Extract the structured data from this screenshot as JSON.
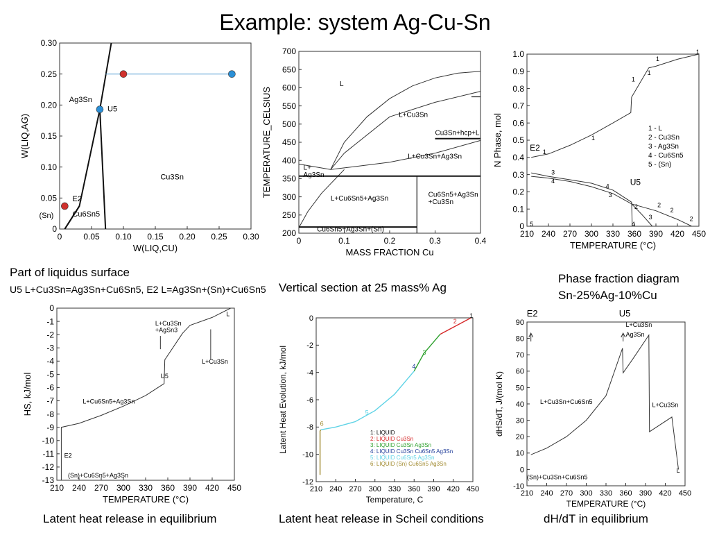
{
  "title": "Example: system Ag-Cu-Sn",
  "captions": {
    "p1_a": "Part of liquidus surface",
    "p1_b": "U5 L+Cu3Sn=Ag3Sn+Cu6Sn5, E2 L=Ag3Sn+(Sn)+Cu6Sn5",
    "p2": "Vertical section at 25 mass% Ag",
    "p3_a": "Phase fraction diagram",
    "p3_b": "Sn-25%Ag-10%Cu",
    "p4": "Latent heat release in equilibrium",
    "p5": "Latent heat release in Scheil conditions",
    "p6": "dH/dT in equilibrium"
  },
  "colors": {
    "red": "#d0312d",
    "blue": "#2b8fd6",
    "arrow": "#6aa9d8",
    "liq": "#d62728",
    "green": "#2ca02c",
    "navy": "#1f3c99",
    "cyan": "#5fd3e6",
    "olive": "#a0892d"
  },
  "chart_data": [
    {
      "id": "liquidus",
      "type": "line",
      "xlabel": "W(LIQ,CU)",
      "ylabel": "W(LIQ,AG)",
      "xlim": [
        0,
        0.3
      ],
      "ylim": [
        0,
        0.3
      ],
      "xticks": [
        "0",
        "0.05",
        "0.10",
        "0.15",
        "0.20",
        "0.25",
        "0.30"
      ],
      "yticks": [
        "0",
        "0.05",
        "0.10",
        "0.15",
        "0.20",
        "0.25",
        "0.30"
      ],
      "lines": [
        {
          "x": [
            0.008,
            0.031,
            0.063,
            0.081
          ],
          "y": [
            0,
            0.037,
            0.193,
            0.3
          ]
        },
        {
          "x": [
            0.063,
            0.072
          ],
          "y": [
            0.193,
            0
          ]
        },
        {
          "x": [
            0.031,
            0.008
          ],
          "y": [
            0.037,
            0.0
          ]
        }
      ],
      "path": {
        "x": [
          0.27,
          0.1,
          0.072
        ],
        "y": [
          0.25,
          0.25,
          0.25
        ]
      },
      "points": [
        {
          "x": 0.1,
          "y": 0.25,
          "c": "red"
        },
        {
          "x": 0.27,
          "y": 0.25,
          "c": "blue"
        },
        {
          "x": 0.063,
          "y": 0.193,
          "c": "blue"
        },
        {
          "x": 0.008,
          "y": 0.037,
          "c": "red"
        }
      ],
      "labels": [
        {
          "x": 0.015,
          "y": 0.205,
          "t": "Ag3Sn"
        },
        {
          "x": 0.075,
          "y": 0.19,
          "t": "U5"
        },
        {
          "x": 0.158,
          "y": 0.08,
          "t": "Cu3Sn"
        },
        {
          "x": 0.02,
          "y": 0.045,
          "t": "E2"
        },
        {
          "x": 0.02,
          "y": 0.02,
          "t": "Cu6Sn5"
        },
        {
          "x": -0.032,
          "y": 0.018,
          "t": "(Sn)"
        }
      ]
    },
    {
      "id": "vsection",
      "type": "line",
      "xlabel": "MASS FRACTION Cu",
      "ylabel": "TEMPERATURE_CELSIUS",
      "xlim": [
        0,
        0.4
      ],
      "ylim": [
        200,
        700
      ],
      "xticks": [
        "0",
        "0.1",
        "0.2",
        "0.3",
        "0.4"
      ],
      "yticks": [
        "200",
        "250",
        "300",
        "350",
        "400",
        "450",
        "500",
        "550",
        "600",
        "650",
        "700"
      ],
      "liquidus": {
        "x": [
          0.07,
          0.1,
          0.15,
          0.2,
          0.25,
          0.3,
          0.35,
          0.4
        ],
        "y": [
          375,
          450,
          520,
          570,
          605,
          627,
          640,
          645
        ]
      },
      "labels": [
        {
          "x": 0.09,
          "y": 605,
          "t": "L"
        },
        {
          "x": 0.22,
          "y": 520,
          "t": "L+Cu3Sn"
        },
        {
          "x": 0.3,
          "y": 470,
          "t": "Cu3Sn+hcp+L"
        },
        {
          "x": 0.24,
          "y": 405,
          "t": "L+Cu3Sn+Ag3Sn"
        },
        {
          "x": 0.01,
          "y": 375,
          "t": "L+"
        },
        {
          "x": 0.01,
          "y": 355,
          "t": "Ag3Sn"
        },
        {
          "x": 0.07,
          "y": 290,
          "t": "L+Cu6Sn5+Ag3Sn"
        },
        {
          "x": 0.285,
          "y": 300,
          "t": "Cu6Sn5+Ag3Sn"
        },
        {
          "x": 0.285,
          "y": 280,
          "t": "+Cu3Sn"
        },
        {
          "x": 0.04,
          "y": 205,
          "t": "Cu6Sn5+Ag3Sn+(Sn)"
        }
      ]
    },
    {
      "id": "phasefraction",
      "type": "line",
      "xlabel": "TEMPERATURE (°C)",
      "ylabel": "N Phase, mol",
      "xlim": [
        210,
        450
      ],
      "ylim": [
        0,
        1.0
      ],
      "xticks": [
        "210",
        "240",
        "270",
        "300",
        "330",
        "360",
        "390",
        "420",
        "450"
      ],
      "yticks": [
        "0",
        "0.1",
        "0.2",
        "0.3",
        "0.4",
        "0.5",
        "0.6",
        "0.7",
        "0.8",
        "0.9",
        "1.0"
      ],
      "legend": [
        "1 - L",
        "2 - Cu3Sn",
        "3 - Ag3Sn",
        "4 - Cu6Sn5",
        "5 - (Sn)"
      ],
      "series": [
        {
          "x": [
            216,
            240,
            270,
            300,
            330,
            355,
            356,
            380,
            390,
            420,
            450
          ],
          "y": [
            0.4,
            0.42,
            0.47,
            0.53,
            0.6,
            0.66,
            0.75,
            0.92,
            0.93,
            0.97,
            1.0
          ]
        },
        {
          "x": [
            356,
            390,
            420,
            440
          ],
          "y": [
            0.13,
            0.09,
            0.04,
            0
          ]
        },
        {
          "x": [
            216,
            240,
            270,
            300,
            330,
            356,
            370,
            385
          ],
          "y": [
            0.29,
            0.28,
            0.26,
            0.23,
            0.19,
            0.13,
            0.07,
            0
          ]
        },
        {
          "x": [
            216,
            240,
            270,
            300,
            330,
            356,
            357
          ],
          "y": [
            0.31,
            0.29,
            0.27,
            0.25,
            0.21,
            0.14,
            0
          ]
        }
      ],
      "labels": [
        {
          "x": 212,
          "y": 0.44,
          "t": "E2"
        },
        {
          "x": 352,
          "y": 0.24,
          "t": "U5"
        }
      ]
    },
    {
      "id": "latentheat",
      "type": "line",
      "xlabel": "TEMPERATURE (°C)",
      "ylabel": "HS, kJ/mol",
      "xlim": [
        210,
        450
      ],
      "ylim": [
        -13,
        0
      ],
      "xticks": [
        "210",
        "240",
        "270",
        "300",
        "330",
        "360",
        "390",
        "420",
        "450"
      ],
      "yticks": [
        "0",
        "-1",
        "-2",
        "-3",
        "-4",
        "-5",
        "-6",
        "-7",
        "-8",
        "-9",
        "-10",
        "-11",
        "-12",
        "-13"
      ],
      "series": [
        {
          "x": [
            216,
            216,
            240,
            270,
            300,
            330,
            355,
            356,
            380,
            390,
            420,
            445
          ],
          "y": [
            -13,
            -9,
            -8.7,
            -8.1,
            -7.4,
            -6.6,
            -5.7,
            -3.9,
            -1.9,
            -1.3,
            -0.7,
            0
          ]
        }
      ],
      "labels": [
        {
          "x": 343,
          "y": -1.3,
          "t": "L+Cu3Sn"
        },
        {
          "x": 343,
          "y": -1.8,
          "t": "+AgSn3"
        },
        {
          "x": 406,
          "y": -4.2,
          "t": "L+Cu3Sn"
        },
        {
          "x": 439,
          "y": -0.6,
          "t": "L"
        },
        {
          "x": 245,
          "y": -7.2,
          "t": "L+Cu6Sn5+Ag3Sn"
        },
        {
          "x": 350,
          "y": -5.3,
          "t": "U5"
        },
        {
          "x": 220,
          "y": -11.3,
          "t": "E2"
        },
        {
          "x": 225,
          "y": -12.8,
          "t": "(Sn)+Cu6Sn5+Ag3Sn"
        }
      ]
    },
    {
      "id": "scheil",
      "type": "line",
      "xlabel": "Temperature, C",
      "ylabel": "Latent Heat Evolution, kJ/mol",
      "xlim": [
        210,
        450
      ],
      "ylim": [
        -12,
        0
      ],
      "xticks": [
        "210",
        "240",
        "270",
        "300",
        "330",
        "360",
        "390",
        "420",
        "450"
      ],
      "yticks": [
        "0",
        "-2",
        "-4",
        "-6",
        "-8",
        "-10",
        "-12"
      ],
      "legend": [
        "1: LIQUID",
        "2: LIQUID Cu3Sn",
        "3: LIQUID Cu3Sn Ag3Sn",
        "4: LIQUID Cu3Sn Cu6Sn5 Ag3Sn",
        "5: LIQUID Cu6Sn5 Ag3Sn",
        "6: LIQUID (Sn) Cu6Sn5 Ag3Sn"
      ],
      "series": [
        {
          "name": "2",
          "x": [
            447,
            400
          ],
          "y": [
            0,
            -1.2
          ]
        },
        {
          "name": "3",
          "x": [
            400,
            375,
            360
          ],
          "y": [
            -1.2,
            -2.6,
            -3.9
          ]
        },
        {
          "name": "5",
          "x": [
            360,
            330,
            300,
            270,
            240,
            217
          ],
          "y": [
            -3.9,
            -5.6,
            -6.8,
            -7.6,
            -8.0,
            -8.2
          ]
        },
        {
          "name": "6",
          "x": [
            217,
            216,
            216
          ],
          "y": [
            -8.2,
            -8.3,
            -11.5
          ]
        }
      ]
    },
    {
      "id": "dhdt",
      "type": "line",
      "xlabel": "TEMPERATURE (°C)",
      "ylabel": "dHS/dT, J/(mol K)",
      "xlim": [
        210,
        450
      ],
      "ylim": [
        -10,
        90
      ],
      "xticks": [
        "210",
        "240",
        "270",
        "300",
        "330",
        "360",
        "390",
        "420",
        "450"
      ],
      "yticks": [
        "-10",
        "0",
        "10",
        "20",
        "30",
        "40",
        "50",
        "60",
        "70",
        "80",
        "90"
      ],
      "series": [
        {
          "x": [
            216,
            240,
            270,
            300,
            330,
            355,
            356,
            370,
            395,
            396,
            430,
            440
          ],
          "y": [
            9,
            13,
            20,
            30,
            45,
            74,
            59,
            67,
            82,
            23,
            32,
            0
          ]
        }
      ],
      "labels": [
        {
          "x": 360,
          "y": 87,
          "t": "L+Cu3Sn"
        },
        {
          "x": 360,
          "y": 81,
          "t": "Ag3Sn"
        },
        {
          "x": 230,
          "y": 40,
          "t": "L+Cu3Sn+Cu6Sn5"
        },
        {
          "x": 400,
          "y": 38,
          "t": "L+Cu3Sn"
        },
        {
          "x": 437,
          "y": -2,
          "t": "L"
        },
        {
          "x": 210,
          "y": -6,
          "t": "(Sn)+Cu3Sn+Cu6Sn5"
        }
      ],
      "tops": [
        {
          "t": "E2",
          "x": 216
        },
        {
          "t": "U5",
          "x": 356
        }
      ]
    }
  ]
}
